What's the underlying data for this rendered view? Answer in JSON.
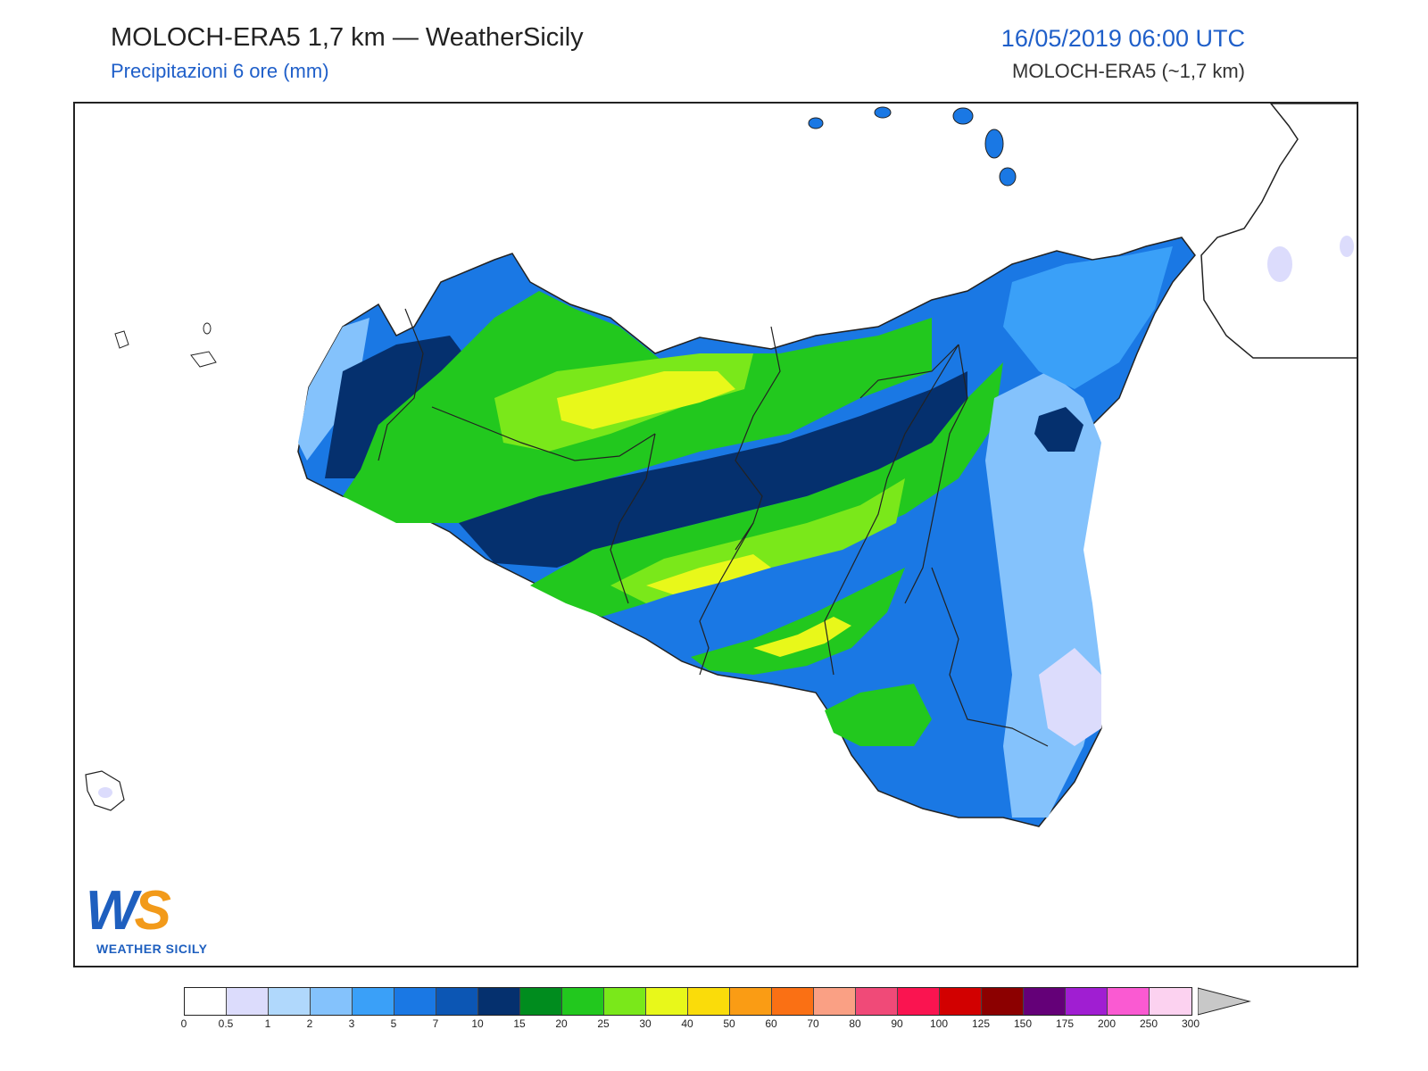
{
  "header": {
    "title": "MOLOCH-ERA5 1,7 km — WeatherSicily",
    "subtitle": "Precipitazioni 6 ore (mm)",
    "datetime": "16/05/2019 06:00 UTC",
    "model": "MOLOCH-ERA5 (~1,7 km)"
  },
  "logo": {
    "initials_w": "W",
    "initials_s": "S",
    "brand": "WEATHER SICILY"
  },
  "legend": {
    "colors": [
      "#ffffff",
      "#dcdcfc",
      "#b0d8fc",
      "#84c2fc",
      "#3aa0f8",
      "#1a78e4",
      "#0c56b4",
      "#05306e",
      "#008c1e",
      "#22c81e",
      "#7ae81a",
      "#e8f81a",
      "#fadc0a",
      "#fa9c14",
      "#fa7014",
      "#faa084",
      "#f04a78",
      "#fa1450",
      "#d20000",
      "#8c0000",
      "#640078",
      "#a01ed2",
      "#fa5ad2",
      "#fcd2f0"
    ],
    "ticks": [
      "0",
      "0.5",
      "1",
      "2",
      "3",
      "5",
      "7",
      "10",
      "15",
      "20",
      "25",
      "30",
      "40",
      "50",
      "60",
      "70",
      "80",
      "90",
      "100",
      "125",
      "150",
      "175",
      "200",
      "250",
      "300"
    ],
    "overflow_color": "#c8c8c8"
  }
}
